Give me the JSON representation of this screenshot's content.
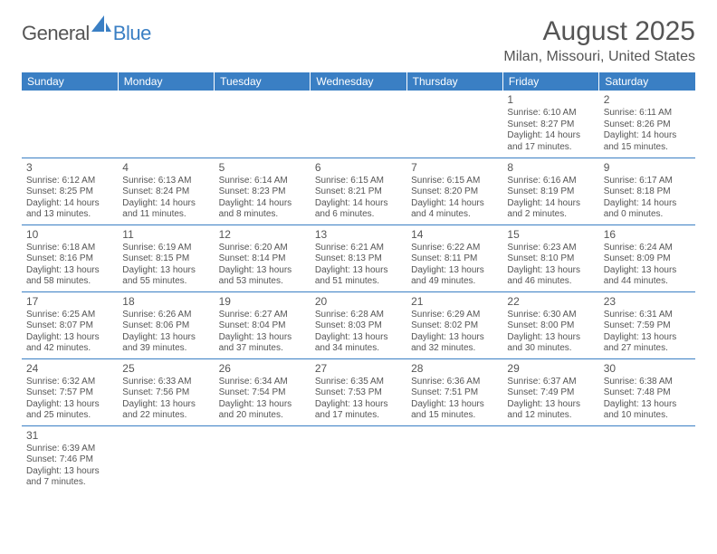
{
  "brand": {
    "text1": "General",
    "text2": "Blue",
    "icon_color": "#3a7fc4"
  },
  "title": "August 2025",
  "location": "Milan, Missouri, United States",
  "colors": {
    "header_bg": "#3a7fc4",
    "header_fg": "#ffffff",
    "cell_border": "#3a7fc4",
    "text": "#555555",
    "background": "#ffffff"
  },
  "day_headers": [
    "Sunday",
    "Monday",
    "Tuesday",
    "Wednesday",
    "Thursday",
    "Friday",
    "Saturday"
  ],
  "weeks": [
    [
      null,
      null,
      null,
      null,
      null,
      {
        "d": "1",
        "sr": "Sunrise: 6:10 AM",
        "ss": "Sunset: 8:27 PM",
        "dl1": "Daylight: 14 hours",
        "dl2": "and 17 minutes."
      },
      {
        "d": "2",
        "sr": "Sunrise: 6:11 AM",
        "ss": "Sunset: 8:26 PM",
        "dl1": "Daylight: 14 hours",
        "dl2": "and 15 minutes."
      }
    ],
    [
      {
        "d": "3",
        "sr": "Sunrise: 6:12 AM",
        "ss": "Sunset: 8:25 PM",
        "dl1": "Daylight: 14 hours",
        "dl2": "and 13 minutes."
      },
      {
        "d": "4",
        "sr": "Sunrise: 6:13 AM",
        "ss": "Sunset: 8:24 PM",
        "dl1": "Daylight: 14 hours",
        "dl2": "and 11 minutes."
      },
      {
        "d": "5",
        "sr": "Sunrise: 6:14 AM",
        "ss": "Sunset: 8:23 PM",
        "dl1": "Daylight: 14 hours",
        "dl2": "and 8 minutes."
      },
      {
        "d": "6",
        "sr": "Sunrise: 6:15 AM",
        "ss": "Sunset: 8:21 PM",
        "dl1": "Daylight: 14 hours",
        "dl2": "and 6 minutes."
      },
      {
        "d": "7",
        "sr": "Sunrise: 6:15 AM",
        "ss": "Sunset: 8:20 PM",
        "dl1": "Daylight: 14 hours",
        "dl2": "and 4 minutes."
      },
      {
        "d": "8",
        "sr": "Sunrise: 6:16 AM",
        "ss": "Sunset: 8:19 PM",
        "dl1": "Daylight: 14 hours",
        "dl2": "and 2 minutes."
      },
      {
        "d": "9",
        "sr": "Sunrise: 6:17 AM",
        "ss": "Sunset: 8:18 PM",
        "dl1": "Daylight: 14 hours",
        "dl2": "and 0 minutes."
      }
    ],
    [
      {
        "d": "10",
        "sr": "Sunrise: 6:18 AM",
        "ss": "Sunset: 8:16 PM",
        "dl1": "Daylight: 13 hours",
        "dl2": "and 58 minutes."
      },
      {
        "d": "11",
        "sr": "Sunrise: 6:19 AM",
        "ss": "Sunset: 8:15 PM",
        "dl1": "Daylight: 13 hours",
        "dl2": "and 55 minutes."
      },
      {
        "d": "12",
        "sr": "Sunrise: 6:20 AM",
        "ss": "Sunset: 8:14 PM",
        "dl1": "Daylight: 13 hours",
        "dl2": "and 53 minutes."
      },
      {
        "d": "13",
        "sr": "Sunrise: 6:21 AM",
        "ss": "Sunset: 8:13 PM",
        "dl1": "Daylight: 13 hours",
        "dl2": "and 51 minutes."
      },
      {
        "d": "14",
        "sr": "Sunrise: 6:22 AM",
        "ss": "Sunset: 8:11 PM",
        "dl1": "Daylight: 13 hours",
        "dl2": "and 49 minutes."
      },
      {
        "d": "15",
        "sr": "Sunrise: 6:23 AM",
        "ss": "Sunset: 8:10 PM",
        "dl1": "Daylight: 13 hours",
        "dl2": "and 46 minutes."
      },
      {
        "d": "16",
        "sr": "Sunrise: 6:24 AM",
        "ss": "Sunset: 8:09 PM",
        "dl1": "Daylight: 13 hours",
        "dl2": "and 44 minutes."
      }
    ],
    [
      {
        "d": "17",
        "sr": "Sunrise: 6:25 AM",
        "ss": "Sunset: 8:07 PM",
        "dl1": "Daylight: 13 hours",
        "dl2": "and 42 minutes."
      },
      {
        "d": "18",
        "sr": "Sunrise: 6:26 AM",
        "ss": "Sunset: 8:06 PM",
        "dl1": "Daylight: 13 hours",
        "dl2": "and 39 minutes."
      },
      {
        "d": "19",
        "sr": "Sunrise: 6:27 AM",
        "ss": "Sunset: 8:04 PM",
        "dl1": "Daylight: 13 hours",
        "dl2": "and 37 minutes."
      },
      {
        "d": "20",
        "sr": "Sunrise: 6:28 AM",
        "ss": "Sunset: 8:03 PM",
        "dl1": "Daylight: 13 hours",
        "dl2": "and 34 minutes."
      },
      {
        "d": "21",
        "sr": "Sunrise: 6:29 AM",
        "ss": "Sunset: 8:02 PM",
        "dl1": "Daylight: 13 hours",
        "dl2": "and 32 minutes."
      },
      {
        "d": "22",
        "sr": "Sunrise: 6:30 AM",
        "ss": "Sunset: 8:00 PM",
        "dl1": "Daylight: 13 hours",
        "dl2": "and 30 minutes."
      },
      {
        "d": "23",
        "sr": "Sunrise: 6:31 AM",
        "ss": "Sunset: 7:59 PM",
        "dl1": "Daylight: 13 hours",
        "dl2": "and 27 minutes."
      }
    ],
    [
      {
        "d": "24",
        "sr": "Sunrise: 6:32 AM",
        "ss": "Sunset: 7:57 PM",
        "dl1": "Daylight: 13 hours",
        "dl2": "and 25 minutes."
      },
      {
        "d": "25",
        "sr": "Sunrise: 6:33 AM",
        "ss": "Sunset: 7:56 PM",
        "dl1": "Daylight: 13 hours",
        "dl2": "and 22 minutes."
      },
      {
        "d": "26",
        "sr": "Sunrise: 6:34 AM",
        "ss": "Sunset: 7:54 PM",
        "dl1": "Daylight: 13 hours",
        "dl2": "and 20 minutes."
      },
      {
        "d": "27",
        "sr": "Sunrise: 6:35 AM",
        "ss": "Sunset: 7:53 PM",
        "dl1": "Daylight: 13 hours",
        "dl2": "and 17 minutes."
      },
      {
        "d": "28",
        "sr": "Sunrise: 6:36 AM",
        "ss": "Sunset: 7:51 PM",
        "dl1": "Daylight: 13 hours",
        "dl2": "and 15 minutes."
      },
      {
        "d": "29",
        "sr": "Sunrise: 6:37 AM",
        "ss": "Sunset: 7:49 PM",
        "dl1": "Daylight: 13 hours",
        "dl2": "and 12 minutes."
      },
      {
        "d": "30",
        "sr": "Sunrise: 6:38 AM",
        "ss": "Sunset: 7:48 PM",
        "dl1": "Daylight: 13 hours",
        "dl2": "and 10 minutes."
      }
    ],
    [
      {
        "d": "31",
        "sr": "Sunrise: 6:39 AM",
        "ss": "Sunset: 7:46 PM",
        "dl1": "Daylight: 13 hours",
        "dl2": "and 7 minutes."
      },
      null,
      null,
      null,
      null,
      null,
      null
    ]
  ]
}
